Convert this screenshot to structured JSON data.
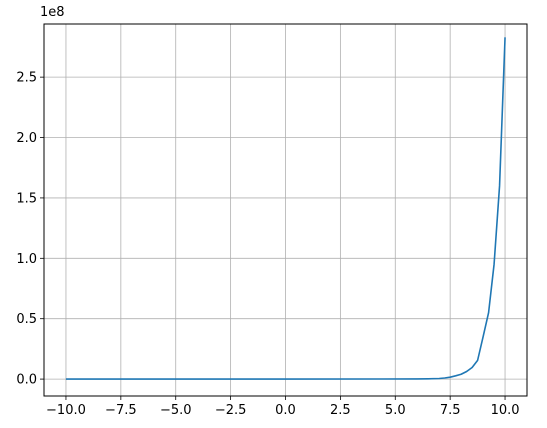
{
  "chart_data": {
    "type": "line",
    "title": "",
    "xlabel": "",
    "ylabel": "",
    "offset_label": "1e8",
    "xlim": [
      -10.0,
      10.0
    ],
    "ylim": [
      0.0,
      2.8
    ],
    "y_scale_factor": 100000000,
    "grid": true,
    "xticks": [
      -10.0,
      -7.5,
      -5.0,
      -2.5,
      0.0,
      2.5,
      5.0,
      7.5,
      10.0
    ],
    "xtick_labels": [
      "−10.0",
      "−7.5",
      "−5.0",
      "−2.5",
      "0.0",
      "2.5",
      "5.0",
      "7.5",
      "10.0"
    ],
    "yticks": [
      0.0,
      0.5,
      1.0,
      1.5,
      2.0,
      2.5
    ],
    "ytick_labels": [
      "0.0",
      "0.5",
      "1.0",
      "1.5",
      "2.0",
      "2.5"
    ],
    "series": [
      {
        "color": "#1f77b4",
        "x": [
          -10.0,
          0.0,
          6.0,
          6.5,
          7.0,
          7.25,
          7.5,
          7.75,
          8.0,
          8.25,
          8.5,
          8.75,
          9.0,
          9.25,
          9.5,
          9.75,
          10.0
        ],
        "values": [
          0.0,
          0.0,
          0.001,
          0.002,
          0.005,
          0.009,
          0.016,
          0.027,
          0.04,
          0.063,
          0.096,
          0.155,
          0.35,
          0.55,
          0.95,
          1.6,
          2.83
        ]
      }
    ]
  }
}
